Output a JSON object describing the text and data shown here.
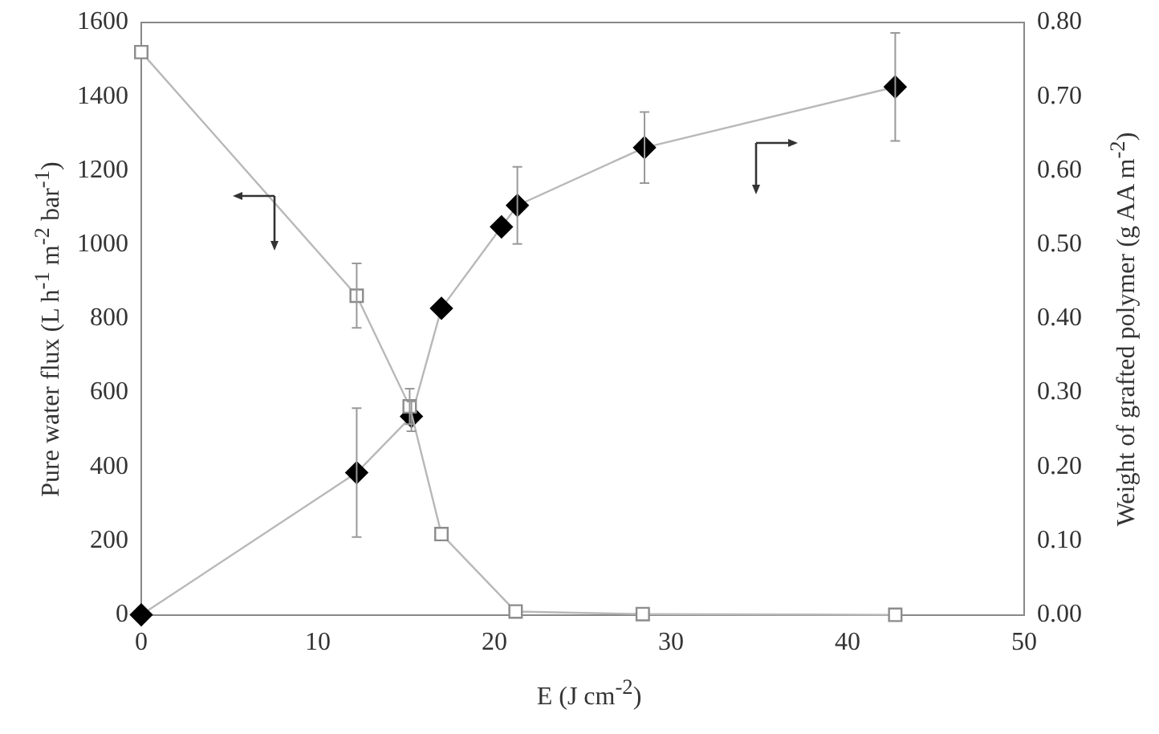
{
  "chart_data": {
    "type": "line",
    "xlabel": "E (J cm$^{-2}$)",
    "ylabel": "Pure water flux (L h$^{-1}$ m$^{-2}$ bar$^{-1}$)",
    "y2label": "Weight of grafted polymer (g AA m$^{-2}$)",
    "xlim": [
      0,
      50
    ],
    "xticks": [
      0,
      10,
      20,
      30,
      40,
      50
    ],
    "ylim": [
      0,
      1600
    ],
    "yticks": [
      0,
      200,
      400,
      600,
      800,
      1000,
      1200,
      1400,
      1600
    ],
    "y2lim": [
      0,
      0.8
    ],
    "y2ticks": [
      {
        "value": 0,
        "label": "0.00"
      },
      {
        "value": 0.1,
        "label": "0.10"
      },
      {
        "value": 0.2,
        "label": "0.20"
      },
      {
        "value": 0.3,
        "label": "0.30"
      },
      {
        "value": 0.4,
        "label": "0.40"
      },
      {
        "value": 0.5,
        "label": "0.50"
      },
      {
        "value": 0.6,
        "label": "0.60"
      },
      {
        "value": 0.7,
        "label": "0.70"
      },
      {
        "value": 0.8,
        "label": "0.80"
      }
    ],
    "grid": false,
    "legend": false,
    "series": [
      {
        "color": "#8c8c8c",
        "marker": "square",
        "x": [
          0,
          12.2,
          15.2,
          17.0,
          21.2,
          28.4,
          42.7
        ],
        "values": [
          1520,
          862,
          563,
          218,
          9,
          2,
          0
        ],
        "errors": [
          null,
          87,
          48,
          null,
          null,
          null,
          null
        ]
      },
      {
        "axis": "y2",
        "color": "#000000",
        "marker": "diamond",
        "x": [
          0,
          12.2,
          15.3,
          17.0,
          20.4,
          21.3,
          28.5,
          42.7
        ],
        "values": [
          0,
          0.192,
          0.268,
          0.414,
          0.524,
          0.553,
          0.631,
          0.713
        ],
        "errors": [
          null,
          0.087,
          0.02,
          null,
          null,
          0.052,
          0.048,
          0.073
        ]
      }
    ]
  }
}
